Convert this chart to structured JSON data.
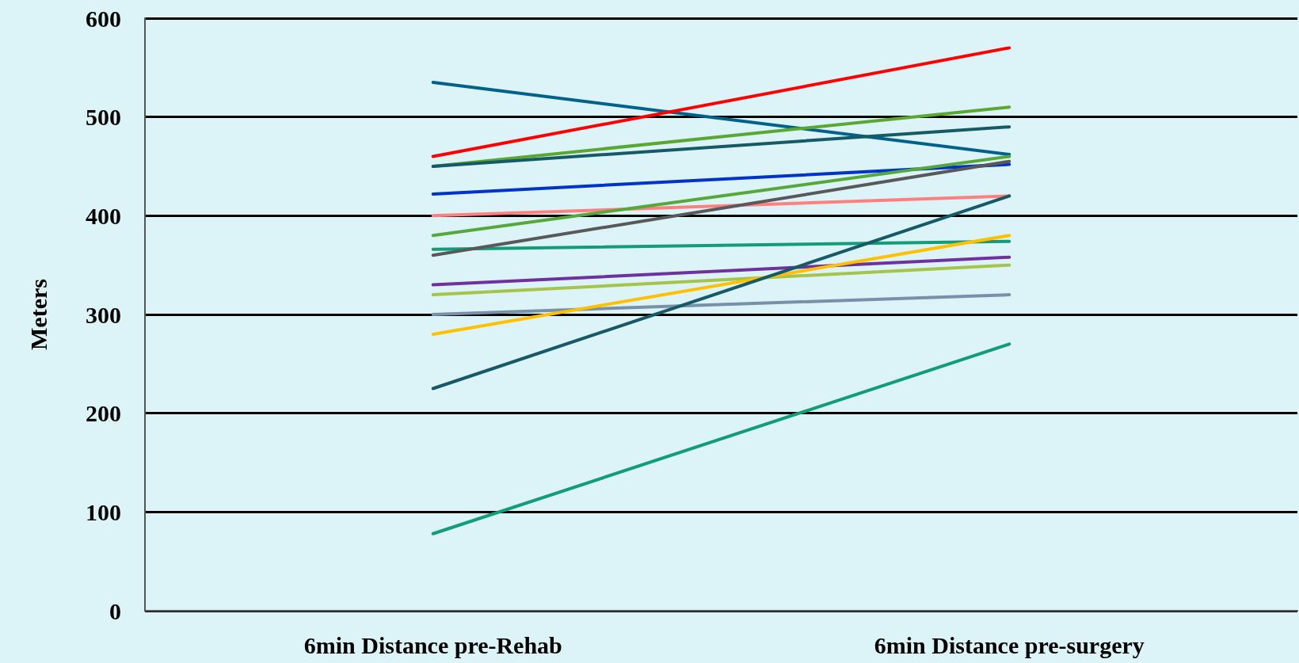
{
  "chart_data": {
    "type": "line",
    "ylabel": "Meters",
    "categories": [
      "6min Distance pre-Rehab",
      "6min Distance pre-surgery"
    ],
    "ylim": [
      0,
      600
    ],
    "yticks": [
      0,
      100,
      200,
      300,
      400,
      500,
      600
    ],
    "grid": "y",
    "marker": "none",
    "line_style": "solid",
    "series": [
      {
        "color": "#00628a",
        "values": [
          535,
          462
        ]
      },
      {
        "color": "#ff0000",
        "values": [
          460,
          570
        ]
      },
      {
        "color": "#5aa832",
        "values": [
          450,
          510
        ]
      },
      {
        "color": "#155a66",
        "values": [
          450,
          490
        ]
      },
      {
        "color": "#0033cc",
        "values": [
          422,
          452
        ]
      },
      {
        "color": "#ff7f7f",
        "values": [
          400,
          420
        ]
      },
      {
        "color": "#56a83a",
        "values": [
          380,
          460
        ]
      },
      {
        "color": "#139c78",
        "values": [
          366,
          374
        ]
      },
      {
        "color": "#595959",
        "values": [
          360,
          455
        ]
      },
      {
        "color": "#7030a0",
        "values": [
          330,
          358
        ]
      },
      {
        "color": "#a6c44a",
        "values": [
          320,
          350
        ]
      },
      {
        "color": "#7890a8",
        "values": [
          300,
          320
        ]
      },
      {
        "color": "#ffc000",
        "values": [
          280,
          380
        ]
      },
      {
        "color": "#155a66",
        "values": [
          225,
          420
        ]
      },
      {
        "color": "#139c78",
        "values": [
          78,
          270
        ]
      }
    ]
  }
}
